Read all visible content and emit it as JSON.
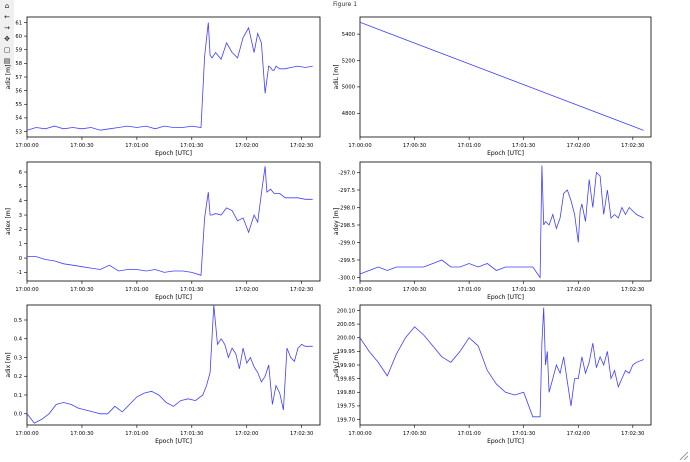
{
  "window": {
    "title": "Figure 1"
  },
  "toolbar": [
    {
      "name": "home-icon",
      "glyph": "⌂"
    },
    {
      "name": "back-icon",
      "glyph": "←"
    },
    {
      "name": "forward-icon",
      "glyph": "→"
    },
    {
      "name": "pan-icon",
      "glyph": "✥"
    },
    {
      "name": "zoom-icon",
      "glyph": "▢"
    },
    {
      "name": "save-icon",
      "glyph": "▤"
    }
  ],
  "colors": {
    "line": "#4040ff",
    "axes": "#000000"
  },
  "chart_data": [
    {
      "type": "line",
      "xlabel": "Epoch [UTC]",
      "ylabel": "adiz [m]",
      "xlim": [
        0,
        160
      ],
      "ylim": [
        52.6,
        61.4
      ],
      "xticks": [
        0,
        30,
        60,
        90,
        120,
        150
      ],
      "xticklabels": [
        "17:00:00",
        "17:00:30",
        "17:01:00",
        "17:01:30",
        "17:02:00",
        "17:02:30"
      ],
      "yticks": [
        53,
        54,
        55,
        56,
        57,
        58,
        59,
        60,
        61
      ],
      "yticklabels": [
        "53",
        "54",
        "55",
        "56",
        "57",
        "58",
        "59",
        "60",
        "61"
      ],
      "x": [
        0,
        5,
        10,
        15,
        20,
        25,
        30,
        35,
        40,
        45,
        50,
        55,
        60,
        65,
        70,
        75,
        80,
        85,
        90,
        95,
        97,
        99,
        100,
        101,
        103,
        106,
        109,
        112,
        115,
        118,
        121,
        124,
        126,
        128,
        130,
        132,
        133,
        134,
        135,
        136,
        138,
        141,
        144,
        148,
        152,
        156
      ],
      "y": [
        53.1,
        53.3,
        53.2,
        53.4,
        53.2,
        53.3,
        53.2,
        53.3,
        53.1,
        53.2,
        53.3,
        53.4,
        53.3,
        53.4,
        53.2,
        53.4,
        53.3,
        53.3,
        53.4,
        53.3,
        58.5,
        61.0,
        58.6,
        58.4,
        58.8,
        58.3,
        59.5,
        58.8,
        58.4,
        59.9,
        60.6,
        58.8,
        60.2,
        59.5,
        55.8,
        57.8,
        57.7,
        57.5,
        57.5,
        57.8,
        57.6,
        57.6,
        57.7,
        57.8,
        57.7,
        57.8
      ]
    },
    {
      "type": "line",
      "xlabel": "Epoch [UTC]",
      "ylabel": "adiL [m]",
      "xlim": [
        0,
        160
      ],
      "ylim": [
        4620,
        5530
      ],
      "xticks": [
        0,
        30,
        60,
        90,
        120,
        150
      ],
      "xticklabels": [
        "17:00:00",
        "17:00:30",
        "17:01:00",
        "17:01:30",
        "17:02:00",
        "17:02:30"
      ],
      "yticks": [
        4800,
        5000,
        5200,
        5400
      ],
      "yticklabels": [
        "4800",
        "5000",
        "5200",
        "5400"
      ],
      "x": [
        0,
        156
      ],
      "y": [
        5490,
        4670
      ]
    },
    {
      "type": "line",
      "xlabel": "Epoch [UTC]",
      "ylabel": "adex [m]",
      "xlim": [
        0,
        160
      ],
      "ylim": [
        -1.6,
        6.7
      ],
      "xticks": [
        0,
        30,
        60,
        90,
        120,
        150
      ],
      "xticklabels": [
        "17:00:00",
        "17:00:30",
        "17:01:00",
        "17:01:30",
        "17:02:00",
        "17:02:30"
      ],
      "yticks": [
        -1,
        0,
        1,
        2,
        3,
        4,
        5,
        6
      ],
      "yticklabels": [
        "-1",
        "0",
        "1",
        "2",
        "3",
        "4",
        "5",
        "6"
      ],
      "x": [
        0,
        5,
        10,
        15,
        20,
        25,
        30,
        35,
        40,
        45,
        50,
        55,
        60,
        65,
        70,
        75,
        80,
        85,
        90,
        95,
        97,
        99,
        100,
        101,
        103,
        106,
        109,
        112,
        115,
        118,
        121,
        124,
        126,
        128,
        130,
        131,
        133,
        135,
        138,
        141,
        144,
        148,
        152,
        156
      ],
      "y": [
        0.1,
        0.1,
        -0.1,
        -0.2,
        -0.4,
        -0.5,
        -0.6,
        -0.7,
        -0.8,
        -0.5,
        -0.9,
        -0.8,
        -0.8,
        -0.9,
        -0.8,
        -1.0,
        -0.9,
        -0.9,
        -1.0,
        -1.2,
        2.8,
        4.6,
        3.0,
        3.0,
        3.1,
        3.0,
        3.5,
        3.3,
        2.6,
        2.8,
        1.8,
        3.0,
        2.5,
        4.5,
        6.4,
        4.6,
        4.8,
        4.5,
        4.5,
        4.2,
        4.2,
        4.2,
        4.1,
        4.1
      ]
    },
    {
      "type": "line",
      "xlabel": "Epoch [UTC]",
      "ylabel": "adey [m]",
      "xlim": [
        0,
        160
      ],
      "ylim": [
        -300.1,
        -296.7
      ],
      "xticks": [
        0,
        30,
        60,
        90,
        120,
        150
      ],
      "xticklabels": [
        "17:00:00",
        "17:00:30",
        "17:01:00",
        "17:01:30",
        "17:02:00",
        "17:02:30"
      ],
      "yticks": [
        -300.0,
        -299.5,
        -299.0,
        -298.5,
        -298.0,
        -297.5,
        -297.0
      ],
      "yticklabels": [
        "-300.0",
        "-299.5",
        "-299.0",
        "-298.5",
        "-298.0",
        "-297.5",
        "-297.0"
      ],
      "x": [
        0,
        5,
        10,
        15,
        20,
        25,
        30,
        35,
        40,
        45,
        50,
        55,
        60,
        65,
        70,
        75,
        80,
        85,
        90,
        95,
        99,
        100,
        101,
        102,
        104,
        106,
        108,
        110,
        112,
        114,
        116,
        118,
        120,
        121,
        122,
        124,
        126,
        128,
        130,
        132,
        134,
        136,
        138,
        140,
        142,
        144,
        146,
        148,
        152,
        156
      ],
      "y": [
        -299.9,
        -299.8,
        -299.7,
        -299.8,
        -299.7,
        -299.7,
        -299.7,
        -299.7,
        -299.6,
        -299.5,
        -299.7,
        -299.7,
        -299.6,
        -299.7,
        -299.6,
        -299.8,
        -299.7,
        -299.7,
        -299.7,
        -299.7,
        -300.0,
        -296.8,
        -298.5,
        -298.4,
        -298.5,
        -298.2,
        -298.6,
        -298.3,
        -297.6,
        -297.5,
        -297.8,
        -298.2,
        -299.0,
        -298.1,
        -297.9,
        -298.4,
        -297.2,
        -298.0,
        -297.0,
        -297.1,
        -298.2,
        -297.5,
        -298.3,
        -298.2,
        -298.3,
        -298.0,
        -298.2,
        -298.0,
        -298.2,
        -298.3
      ]
    },
    {
      "type": "line",
      "xlabel": "Epoch [UTC]",
      "ylabel": "adix [m]",
      "xlim": [
        0,
        160
      ],
      "ylim": [
        -0.06,
        0.58
      ],
      "xticks": [
        0,
        30,
        60,
        90,
        120,
        150
      ],
      "xticklabels": [
        "17:00:00",
        "17:00:30",
        "17:01:00",
        "17:01:30",
        "17:02:00",
        "17:02:30"
      ],
      "yticks": [
        0.0,
        0.1,
        0.2,
        0.3,
        0.4,
        0.5
      ],
      "yticklabels": [
        "0.0",
        "0.1",
        "0.2",
        "0.3",
        "0.4",
        "0.5"
      ],
      "x": [
        0,
        4,
        8,
        12,
        16,
        20,
        24,
        28,
        32,
        36,
        40,
        44,
        48,
        52,
        56,
        60,
        64,
        68,
        72,
        76,
        80,
        84,
        88,
        92,
        96,
        98,
        100,
        102,
        104,
        106,
        108,
        110,
        112,
        114,
        116,
        118,
        120,
        122,
        124,
        126,
        128,
        130,
        132,
        134,
        136,
        138,
        140,
        142,
        144,
        146,
        148,
        150,
        152,
        156
      ],
      "y": [
        0.0,
        -0.05,
        -0.03,
        0.0,
        0.05,
        0.06,
        0.05,
        0.03,
        0.02,
        0.01,
        0.0,
        0.0,
        0.04,
        0.01,
        0.05,
        0.09,
        0.11,
        0.12,
        0.1,
        0.06,
        0.04,
        0.07,
        0.08,
        0.07,
        0.1,
        0.15,
        0.22,
        0.58,
        0.37,
        0.4,
        0.37,
        0.3,
        0.35,
        0.32,
        0.24,
        0.35,
        0.27,
        0.3,
        0.25,
        0.22,
        0.17,
        0.2,
        0.26,
        0.05,
        0.15,
        0.11,
        0.02,
        0.35,
        0.3,
        0.28,
        0.35,
        0.37,
        0.36,
        0.36
      ]
    },
    {
      "type": "line",
      "xlabel": "Epoch [UTC]",
      "ylabel": "adiy [m]",
      "xlim": [
        0,
        160
      ],
      "ylim": [
        199.68,
        200.12
      ],
      "xticks": [
        0,
        30,
        60,
        90,
        120,
        150
      ],
      "xticklabels": [
        "17:00:00",
        "17:00:30",
        "17:01:00",
        "17:01:30",
        "17:02:00",
        "17:02:30"
      ],
      "yticks": [
        199.7,
        199.75,
        199.8,
        199.85,
        199.9,
        199.95,
        200.0,
        200.05,
        200.1
      ],
      "yticklabels": [
        "199.70",
        "199.75",
        "199.80",
        "199.85",
        "199.90",
        "199.95",
        "200.00",
        "200.05",
        "200.10"
      ],
      "x": [
        0,
        5,
        10,
        15,
        20,
        25,
        30,
        35,
        40,
        45,
        50,
        55,
        60,
        65,
        70,
        75,
        80,
        85,
        90,
        95,
        99,
        100,
        101,
        102,
        103,
        104,
        106,
        108,
        110,
        112,
        114,
        116,
        118,
        120,
        122,
        124,
        126,
        128,
        130,
        132,
        134,
        136,
        138,
        140,
        142,
        144,
        146,
        148,
        150,
        152,
        156
      ],
      "y": [
        200.0,
        199.95,
        199.91,
        199.86,
        199.94,
        200.0,
        200.04,
        200.01,
        199.97,
        199.93,
        199.91,
        199.95,
        200.0,
        199.97,
        199.88,
        199.83,
        199.8,
        199.79,
        199.8,
        199.71,
        199.71,
        199.98,
        200.11,
        199.9,
        199.95,
        199.8,
        199.85,
        199.9,
        199.87,
        199.93,
        199.84,
        199.75,
        199.85,
        199.85,
        199.93,
        199.87,
        199.91,
        199.98,
        199.89,
        199.93,
        199.9,
        199.95,
        199.85,
        199.88,
        199.82,
        199.85,
        199.88,
        199.87,
        199.9,
        199.91,
        199.92
      ]
    }
  ]
}
